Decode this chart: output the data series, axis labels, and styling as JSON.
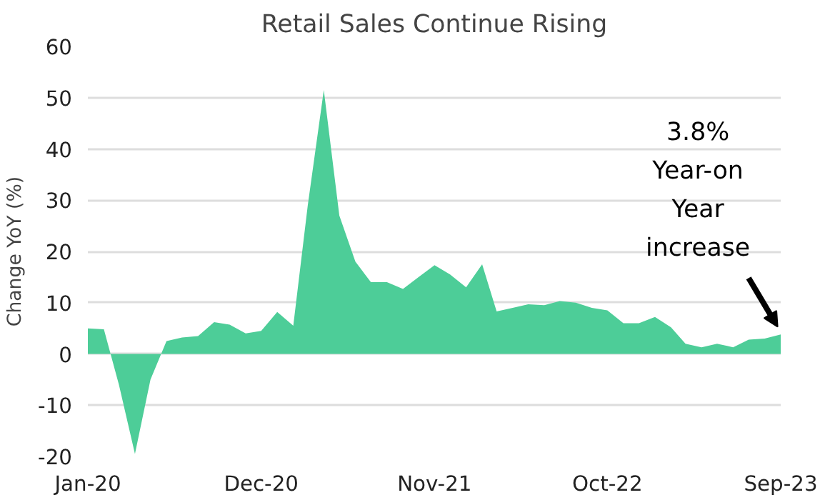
{
  "chart_data": {
    "type": "area",
    "title": "Retail Sales Continue Rising",
    "ylabel": "Change YoY (%)",
    "x": [
      "2020-01",
      "2020-02",
      "2020-03",
      "2020-04",
      "2020-05",
      "2020-06",
      "2020-07",
      "2020-08",
      "2020-09",
      "2020-10",
      "2020-11",
      "2020-12",
      "2021-01",
      "2021-02",
      "2021-03",
      "2021-04",
      "2021-05",
      "2021-06",
      "2021-07",
      "2021-08",
      "2021-09",
      "2021-10",
      "2021-11",
      "2021-12",
      "2022-01",
      "2022-02",
      "2022-03",
      "2022-04",
      "2022-05",
      "2022-06",
      "2022-07",
      "2022-08",
      "2022-09",
      "2022-10",
      "2022-11",
      "2022-12",
      "2023-01",
      "2023-02",
      "2023-03",
      "2023-04",
      "2023-05",
      "2023-06",
      "2023-07",
      "2023-08",
      "2023-09"
    ],
    "series": [
      {
        "color": "#4dcd98",
        "values": [
          5,
          4.8,
          -6,
          -19.5,
          -5,
          2.5,
          3.2,
          3.5,
          6.2,
          5.7,
          4,
          4.5,
          8.2,
          5.5,
          29,
          51.5,
          27,
          18,
          14,
          14,
          12.7,
          15,
          17.3,
          15.5,
          13,
          17.5,
          8.3,
          9,
          9.7,
          9.5,
          10.3,
          10,
          9,
          8.5,
          6,
          6,
          7.2,
          5.2,
          2,
          1.3,
          2,
          1.3,
          2.8,
          3,
          3.8
        ]
      }
    ],
    "xlim": [
      "2020-01",
      "2023-09"
    ],
    "xticks": [
      {
        "value": "2020-01",
        "label": "Jan-20"
      },
      {
        "value": "2020-12",
        "label": "Dec-20"
      },
      {
        "value": "2021-11",
        "label": "Nov-21"
      },
      {
        "value": "2022-10",
        "label": "Oct-22"
      },
      {
        "value": "2023-09",
        "label": "Sep-23"
      }
    ],
    "ylim": [
      -20,
      60
    ],
    "yticks": [
      -20,
      -10,
      0,
      10,
      20,
      30,
      40,
      50,
      60
    ],
    "grid": "y",
    "annotations": [
      {
        "text": "3.8%\nYear-on\nYear\nincrease",
        "x": "2023-09",
        "y": 3.8
      }
    ]
  }
}
